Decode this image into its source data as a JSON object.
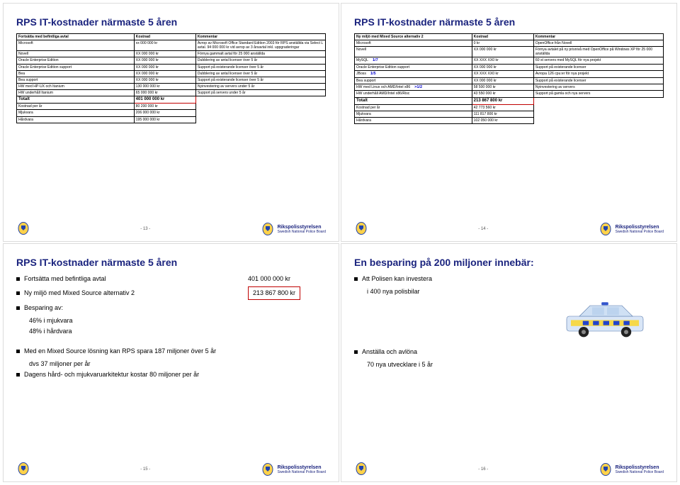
{
  "slides": {
    "s13": {
      "title": "RPS IT-kostnader närmaste 5 åren",
      "headers": [
        "Fortsätta med befintliga avtal",
        "Kostnad",
        "Kommentar"
      ],
      "rows": [
        [
          "Microsoft",
          "xx 000 000 kr",
          "Avrop av Microsoft Office Standard Edition 2003 för RPS anställda via Select L avtal. 94 000 000 kr vid avrop av 3 årsavtal inkl. uppgraderingar"
        ],
        [
          "Novell",
          "XX 000 000 kr",
          "Förnya gammalt avtal för 25 000 anställda"
        ],
        [
          "Oracle Enterprise Edition",
          "XX 000 000 kr",
          "Dubblering av antal licenser över 5 år"
        ],
        [
          "Oracle Enterprise Edition support",
          "XX 000 000 kr",
          "Support på existerande licenser över 5 år"
        ],
        [
          "Bea",
          "XX 000 000 kr",
          "Dubblering av antal licenser över 5 år"
        ],
        [
          "Bea support",
          "XX 000 000 kr",
          "Support på existerande licenser över 5 år"
        ],
        [
          "HW med HP-UX och Itanium",
          "130 000 000 kr",
          "Nyinvestering av servers under 5 år"
        ],
        [
          "HW underhåll Itanium",
          "65 000 000 kr",
          "Support på servers under 5 år"
        ]
      ],
      "total_label": "Totalt",
      "total_value": "401 000 000 kr",
      "sub": [
        [
          "Kostnad per år",
          "80 200 000 kr"
        ],
        [
          "Mjukvara",
          "206 000 000 kr"
        ],
        [
          "Hårdvara",
          "195 000 000 kr"
        ]
      ],
      "page": "- 13 -"
    },
    "s14": {
      "title": "RPS IT-kostnader närmaste 5 åren",
      "headers": [
        "Ny miljö med Mixed Source alternativ 2",
        "Kostnad",
        "Kommentar"
      ],
      "rows": [
        {
          "c": [
            "Microsoft",
            "0 kr",
            "OpenOffice från Novell"
          ]
        },
        {
          "c": [
            "Novell",
            "XX 000 000 kr",
            "Förnya avtalet på ny prisnivå med OpenOffice på Windows XP för 25 000 anställda"
          ]
        },
        {
          "c": [
            "MySQL",
            "XX XXX XX0 kr",
            "60 st servers med MySQL för nya projekt"
          ],
          "frac": "1/7"
        },
        {
          "c": [
            "Oracle Enterprise Edition support",
            "XX 000 000 kr",
            "Support på existerande licenser"
          ]
        },
        {
          "c": [
            "JBoss",
            "XX XXX XX0 kr",
            "Avropa 126 cpu:er för nya projekt"
          ],
          "frac": "1/5"
        },
        {
          "c": [
            "Bea support",
            "XX 000 000 kr",
            "Support på existerande licenser"
          ]
        },
        {
          "c": [
            "HW med Linux och AMD/Intel x86",
            "58 500 000 kr",
            "Nyinvestering av servers"
          ],
          "frac": ">1/2"
        },
        {
          "c": [
            "HW underhåll AMD/Intel x86/Risc",
            "43 550 000 kr",
            "Support på gamla och nya servers"
          ]
        }
      ],
      "total_label": "Totalt",
      "total_value": "213 867 800 kr",
      "sub": [
        [
          "Kostnad per år",
          "42 773 560 kr"
        ],
        [
          "Mjukvara",
          "111 817 800 kr"
        ],
        [
          "Hårdvara",
          "102 050 000 kr"
        ]
      ],
      "page": "- 14 -"
    },
    "s15": {
      "title": "RPS IT-kostnader närmaste 5 åren",
      "line1_label": "Fortsätta med befintliga avtal",
      "line1_value": "401 000 000 kr",
      "line2_label": "Ny miljö med Mixed Source alternativ 2",
      "line2_value": "213 867 800 kr",
      "line3_label": "Besparing av:",
      "line3_sub1": "46% i mjukvara",
      "line3_sub2": "48% i hårdvara",
      "bottom": [
        "Med en Mixed Source lösning kan RPS spara 187 miljoner över 5 år",
        "dvs 37 miljoner per år",
        "Dagens hård- och mjukvaruarkitektur kostar 80 miljoner per år"
      ],
      "page": "- 15 -"
    },
    "s16": {
      "title": "En besparing på 200 miljoner innebär:",
      "b1": "Att Polisen kan investera",
      "b1s": "i 400 nya polisbilar",
      "b2": "Anställa och avlöna",
      "b2s": "70 nya utvecklare i 5 år",
      "page": "- 16 -"
    },
    "org": {
      "name": "Rikspolisstyrelsen",
      "sub": "Swedish National Police Board"
    }
  },
  "colors": {
    "title": "#1a237e",
    "redbox": "#c00000",
    "frac": "#0000cc"
  }
}
